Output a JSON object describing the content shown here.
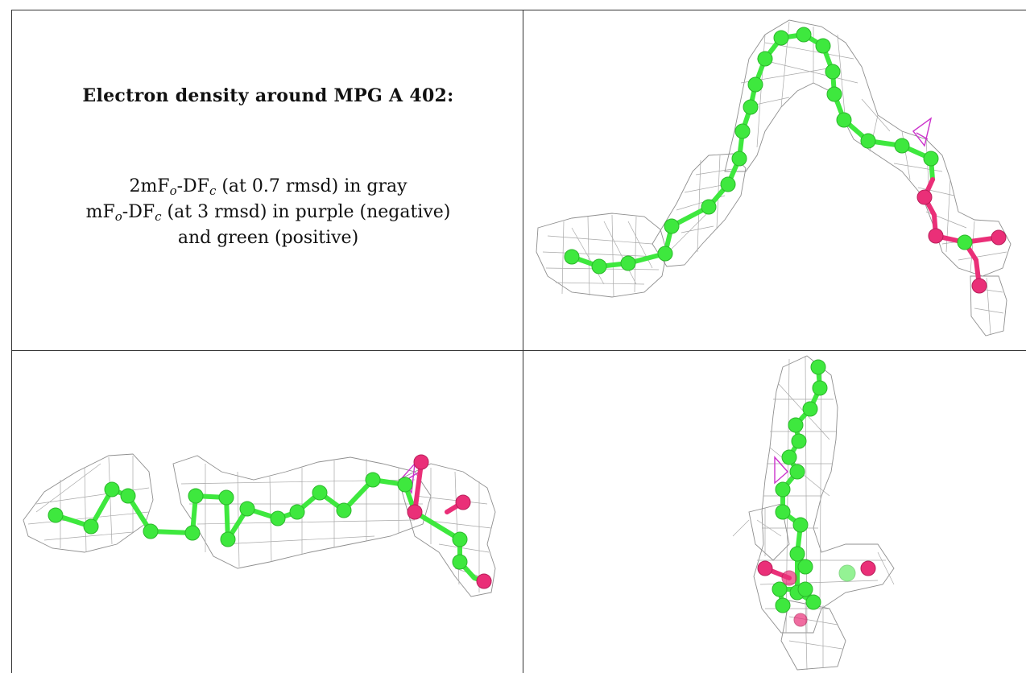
{
  "caption": {
    "title": "Electron density around MPG A 402:",
    "line1_prefix": "2mF",
    "line1_sub_o": "o",
    "line1_mid": "-DF",
    "line1_sub_c": "c",
    "line1_suffix": " (at 0.7 rmsd) in gray",
    "line2_prefix": "mF",
    "line2_sub_o": "o",
    "line2_mid": "-DF",
    "line2_sub_c": "c",
    "line2_suffix": " (at 3 rmsd) in purple (negative)",
    "line3": "and green (positive)"
  },
  "colors": {
    "carbon": "#3ee83e",
    "oxygen": "#ea2f78",
    "density_2fofc": "#8f8f8f",
    "density_negative": "#cc33cc",
    "border": "#333333"
  },
  "panels": [
    {
      "name": "view-top-right"
    },
    {
      "name": "view-bottom-left"
    },
    {
      "name": "view-bottom-right"
    }
  ]
}
